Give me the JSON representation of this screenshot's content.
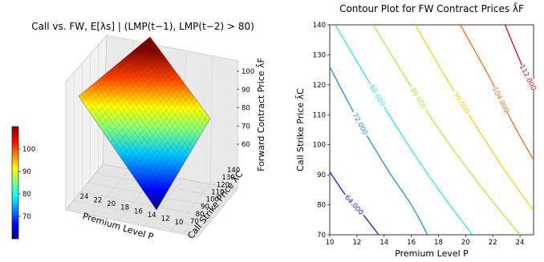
{
  "colors": {
    "jet": [
      "#00007f",
      "#0000ff",
      "#007fff",
      "#00ffff",
      "#7fff7f",
      "#ffff00",
      "#ff7f00",
      "#ff0000",
      "#7f0000"
    ],
    "pane": "#f2f2f2",
    "grid": "#d6d6d6"
  },
  "chart_data": [
    {
      "type": "surface3d",
      "title": "Call vs. FW, E[λs] | (LMP(t−1), LMP(t−2) > 80)",
      "xlabel": "Premium Level P",
      "ylabel": "Call Strike Price λ̄C",
      "zlabel": "Forward Contract Price λ̄F",
      "x_range": [
        10,
        25
      ],
      "y_range": [
        70,
        140
      ],
      "z_range": [
        60,
        110
      ],
      "x_ticks": [
        "24",
        "22",
        "20",
        "18",
        "16",
        "14",
        "12",
        "10"
      ],
      "y_ticks": [
        "70",
        "80",
        "90",
        "100",
        "110",
        "120",
        "130",
        "140"
      ],
      "z_ticks": [
        "60",
        "70",
        "80",
        "90",
        "100"
      ],
      "colorbar": {
        "vmin": 60,
        "vmax": 110,
        "ticks": [
          "70",
          "80",
          "90",
          "100"
        ]
      },
      "corners": [
        {
          "x": 10,
          "y": 70,
          "z": 60
        },
        {
          "x": 25,
          "y": 70,
          "z": 85
        },
        {
          "x": 10,
          "y": 140,
          "z": 86
        },
        {
          "x": 25,
          "y": 140,
          "z": 111
        }
      ]
    },
    {
      "type": "contour",
      "title": "Contour Plot for FW Contract Prices λ̄F",
      "xlabel": "Premium Level P",
      "ylabel": "Call Strike Price λ̄C",
      "xlim": [
        10,
        25
      ],
      "ylim": [
        70,
        140
      ],
      "x_ticks": [
        "10",
        "12",
        "14",
        "16",
        "18",
        "20",
        "22",
        "24"
      ],
      "y_ticks": [
        "70",
        "80",
        "90",
        "100",
        "110",
        "120",
        "130",
        "140"
      ],
      "levels": [
        {
          "value": 64,
          "label": "64.000",
          "color": "#1f1fc8",
          "points": [
            [
              10,
              91
            ],
            [
              11.2,
              83
            ],
            [
              12.4,
              77
            ],
            [
              13.6,
              70
            ]
          ]
        },
        {
          "value": 72,
          "label": "72.000",
          "color": "#1e8fe0",
          "points": [
            [
              10,
              126
            ],
            [
              11.5,
              113
            ],
            [
              13,
              101
            ],
            [
              14.5,
              90
            ],
            [
              16,
              80
            ],
            [
              17.2,
              70
            ]
          ]
        },
        {
          "value": 80,
          "label": "80.000",
          "color": "#33e6c8",
          "points": [
            [
              10.4,
              140
            ],
            [
              12.5,
              124
            ],
            [
              14.5,
              109
            ],
            [
              16.5,
              95
            ],
            [
              18.5,
              82
            ],
            [
              20.5,
              70
            ]
          ]
        },
        {
          "value": 88,
          "label": "88.000",
          "color": "#a6f046",
          "points": [
            [
              13.2,
              140
            ],
            [
              15.5,
              123
            ],
            [
              17.6,
              108
            ],
            [
              19.8,
              94
            ],
            [
              22,
              81
            ],
            [
              24,
              70
            ]
          ]
        },
        {
          "value": 96,
          "label": "96.000",
          "color": "#f0d21e",
          "points": [
            [
              16.3,
              140
            ],
            [
              18.6,
              122
            ],
            [
              20.8,
              106
            ],
            [
              22.8,
              92
            ],
            [
              25,
              78
            ]
          ]
        },
        {
          "value": 104,
          "label": "104.000",
          "color": "#ff6a14",
          "points": [
            [
              19.6,
              140
            ],
            [
              21.7,
              123
            ],
            [
              23.5,
              107
            ],
            [
              25,
              95
            ]
          ]
        },
        {
          "value": 112,
          "label": "112.000",
          "color": "#cc1111",
          "points": [
            [
              22.9,
              140
            ],
            [
              24.2,
              126
            ],
            [
              25,
              119
            ]
          ]
        }
      ]
    }
  ]
}
